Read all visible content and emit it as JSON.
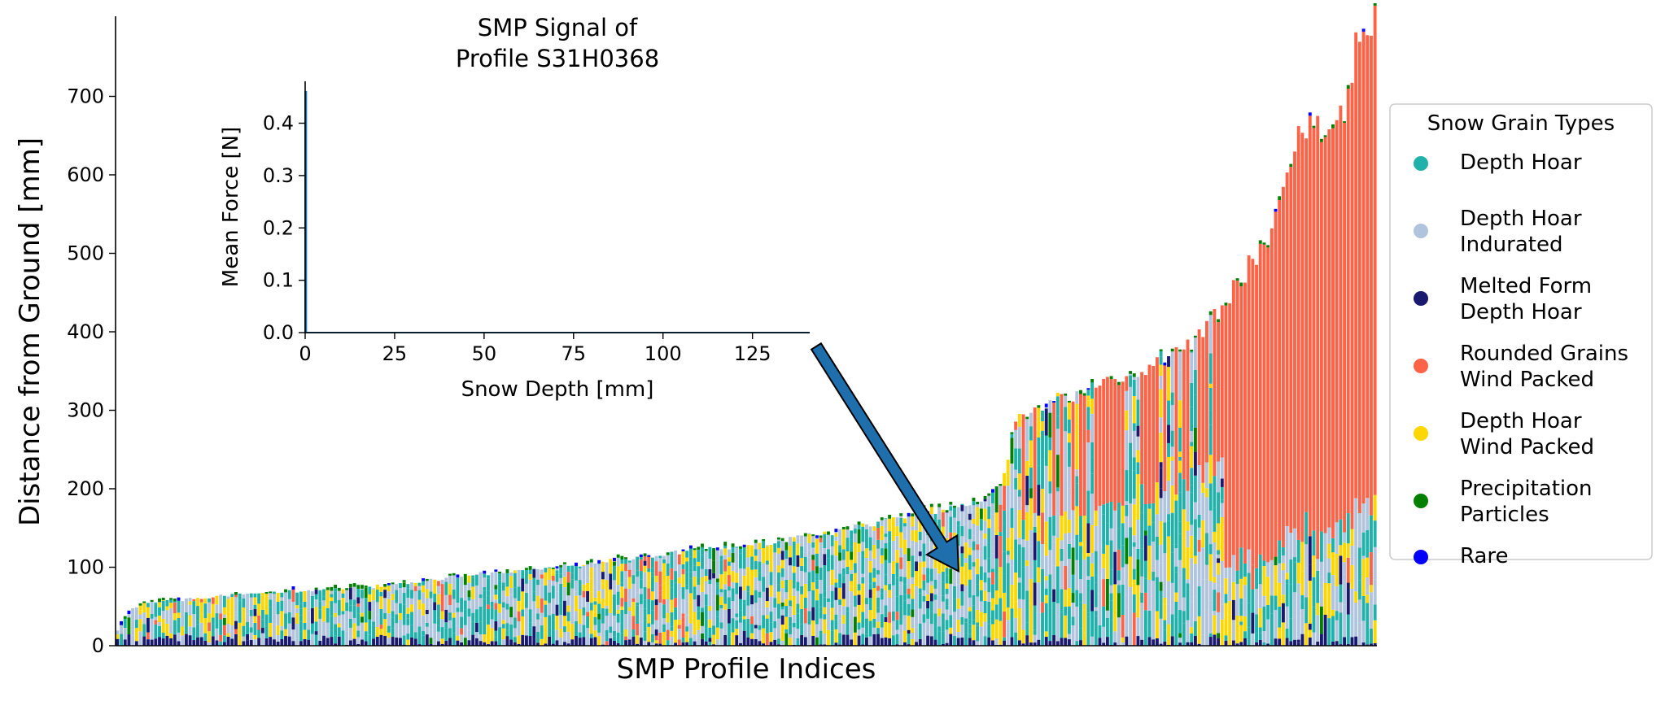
{
  "chart_data": [
    {
      "type": "bar",
      "stacked": true,
      "xlabel": "SMP Profile Indices",
      "ylabel": "Distance from Ground [mm]",
      "ylim": [
        0,
        800
      ],
      "yticks": [
        0,
        100,
        200,
        300,
        400,
        500,
        600,
        700
      ],
      "x_ticks_shown": false,
      "n_profiles": 330,
      "profile_heights_mm": [
        [
          0,
          20
        ],
        [
          10,
          48
        ],
        [
          20,
          55
        ],
        [
          40,
          58
        ],
        [
          60,
          62
        ],
        [
          90,
          67
        ],
        [
          120,
          70
        ],
        [
          150,
          72
        ],
        [
          180,
          78
        ],
        [
          200,
          82
        ],
        [
          220,
          88
        ],
        [
          240,
          92
        ],
        [
          260,
          95
        ],
        [
          280,
          98
        ],
        [
          300,
          103
        ],
        [
          320,
          108
        ],
        [
          340,
          112
        ],
        [
          360,
          118
        ],
        [
          380,
          122
        ],
        [
          400,
          126
        ],
        [
          420,
          130
        ],
        [
          440,
          136
        ],
        [
          460,
          142
        ],
        [
          480,
          150
        ],
        [
          500,
          160
        ],
        [
          520,
          168
        ],
        [
          540,
          175
        ],
        [
          560,
          182
        ],
        [
          570,
          190
        ],
        [
          578,
          215
        ],
        [
          586,
          290
        ],
        [
          600,
          305
        ],
        [
          620,
          318
        ],
        [
          640,
          330
        ],
        [
          660,
          345
        ],
        [
          680,
          365
        ],
        [
          700,
          385
        ],
        [
          712,
          410
        ],
        [
          720,
          430
        ],
        [
          730,
          460
        ],
        [
          740,
          490
        ],
        [
          750,
          505
        ],
        [
          760,
          570
        ],
        [
          770,
          650
        ],
        [
          790,
          665
        ],
        [
          800,
          680
        ],
        [
          808,
          770
        ],
        [
          816,
          795
        ],
        [
          820,
          795
        ]
      ],
      "legend": {
        "title": "Snow Grain Types",
        "placement": "right",
        "entries": [
          {
            "label_lines": [
              "Depth Hoar"
            ],
            "color": "#20B2AA"
          },
          {
            "label_lines": [
              "Depth Hoar",
              "Indurated"
            ],
            "color": "#B0C4DE"
          },
          {
            "label_lines": [
              "Melted Form",
              "Depth Hoar"
            ],
            "color": "#191970"
          },
          {
            "label_lines": [
              "Rounded Grains",
              "Wind Packed"
            ],
            "color": "#FF6347"
          },
          {
            "label_lines": [
              "Depth Hoar",
              "Wind Packed"
            ],
            "color": "#FFD700"
          },
          {
            "label_lines": [
              "Precipitation",
              "Particles"
            ],
            "color": "#008000"
          },
          {
            "label_lines": [
              "Rare"
            ],
            "color": "#0000FF"
          }
        ]
      },
      "annotation": {
        "type": "arrow",
        "from": "inset",
        "to_profile_index": 548,
        "to_value": 95,
        "color": "#1f6fad"
      }
    },
    {
      "type": "line",
      "role": "inset",
      "title_lines": [
        "SMP Signal of",
        "Profile S31H0368"
      ],
      "xlabel": "Snow Depth [mm]",
      "ylabel": "Mean Force [N]",
      "xlim": [
        0,
        141
      ],
      "ylim": [
        0,
        0.48
      ],
      "xticks": [
        0,
        25,
        50,
        75,
        100,
        125
      ],
      "yticks": [
        0.0,
        0.1,
        0.2,
        0.3,
        0.4
      ],
      "ytick_labels": [
        "0.0",
        "0.1",
        "0.2",
        "0.3",
        "0.4"
      ],
      "series": [
        {
          "x": [
            0,
            0,
            0.3,
            0.3,
            141
          ],
          "y": [
            0,
            0.46,
            0.46,
            0,
            0
          ],
          "color": "#1f77b4"
        }
      ]
    }
  ]
}
